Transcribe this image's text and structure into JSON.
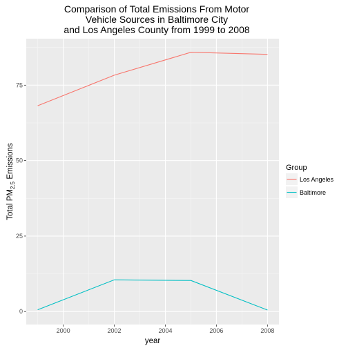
{
  "chart_data": {
    "type": "line",
    "title": [
      "Comparison of Total Emissions From Motor",
      "Vehicle Sources in Baltimore City",
      "and Los Angeles County from 1999 to 2008"
    ],
    "xlabel": "year",
    "ylabel_main": "Total PM",
    "ylabel_sub": "2.5",
    "ylabel_end": " Emissions",
    "x": [
      1999,
      2002,
      2005,
      2008
    ],
    "xlim": [
      1998.55,
      2008.45
    ],
    "ylim": [
      -4.3,
      90.4
    ],
    "x_ticks": [
      2000,
      2002,
      2004,
      2006,
      2008
    ],
    "y_ticks": [
      0,
      25,
      50,
      75
    ],
    "grid": true,
    "legend": {
      "title": "Group",
      "placement": "right"
    },
    "series": [
      {
        "name": "Los Angeles",
        "values": [
          68.2,
          78.3,
          85.9,
          85.2
        ],
        "color": "#f8766d"
      },
      {
        "name": "Baltimore",
        "values": [
          0.6,
          10.5,
          10.3,
          0.5
        ],
        "color": "#00bfc4"
      }
    ]
  }
}
